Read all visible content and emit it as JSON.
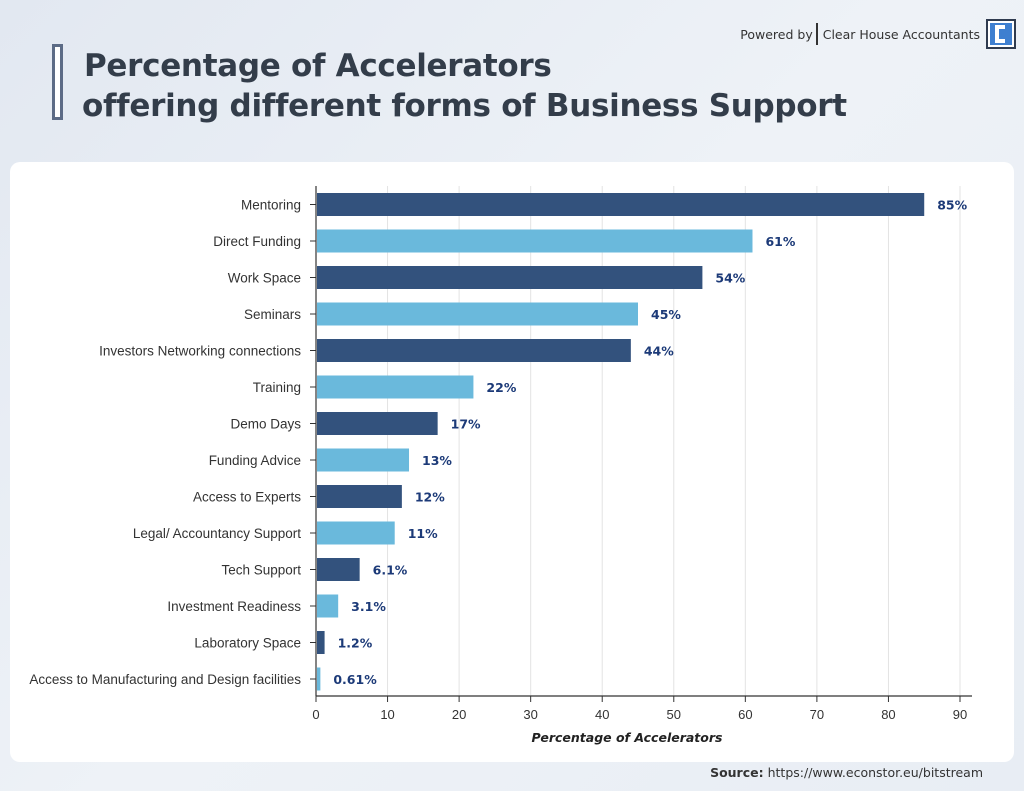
{
  "header": {
    "title_line1": "Percentage of Accelerators",
    "title_line2": "offering different forms of Business Support"
  },
  "brand": {
    "powered_by": "Powered by",
    "name": "Clear House Accountants"
  },
  "source": {
    "label": "Source:",
    "url": "https://www.econstor.eu/bitstream"
  },
  "colors": {
    "dark_bar": "#33527d",
    "light_bar": "#6ab9dc",
    "value_label": "#1c3a78"
  },
  "chart_data": {
    "type": "bar",
    "orientation": "horizontal",
    "categories": [
      "Mentoring",
      "Direct Funding",
      "Work Space",
      "Seminars",
      "Investors Networking connections",
      "Training",
      "Demo Days",
      "Funding Advice",
      "Access to Experts",
      "Legal/ Accountancy Support",
      "Tech Support",
      "Investment Readiness",
      "Laboratory Space",
      "Access to Manufacturing and Design facilities"
    ],
    "values": [
      85,
      61,
      54,
      45,
      44,
      22,
      17,
      13,
      12,
      11,
      6.1,
      3.1,
      1.2,
      0.61
    ],
    "value_labels": [
      "85%",
      "61%",
      "54%",
      "45%",
      "44%",
      "22%",
      "17%",
      "13%",
      "12%",
      "11%",
      "6.1%",
      "3.1%",
      "1.2%",
      "0.61%"
    ],
    "xlabel": "Percentage of Accelerators",
    "ylabel": "",
    "xlim": [
      0,
      90
    ],
    "xticks": [
      0,
      10,
      20,
      30,
      40,
      50,
      60,
      70,
      80,
      90
    ],
    "grid": "vertical",
    "bar_colors_alternating": [
      "dark",
      "light"
    ]
  }
}
